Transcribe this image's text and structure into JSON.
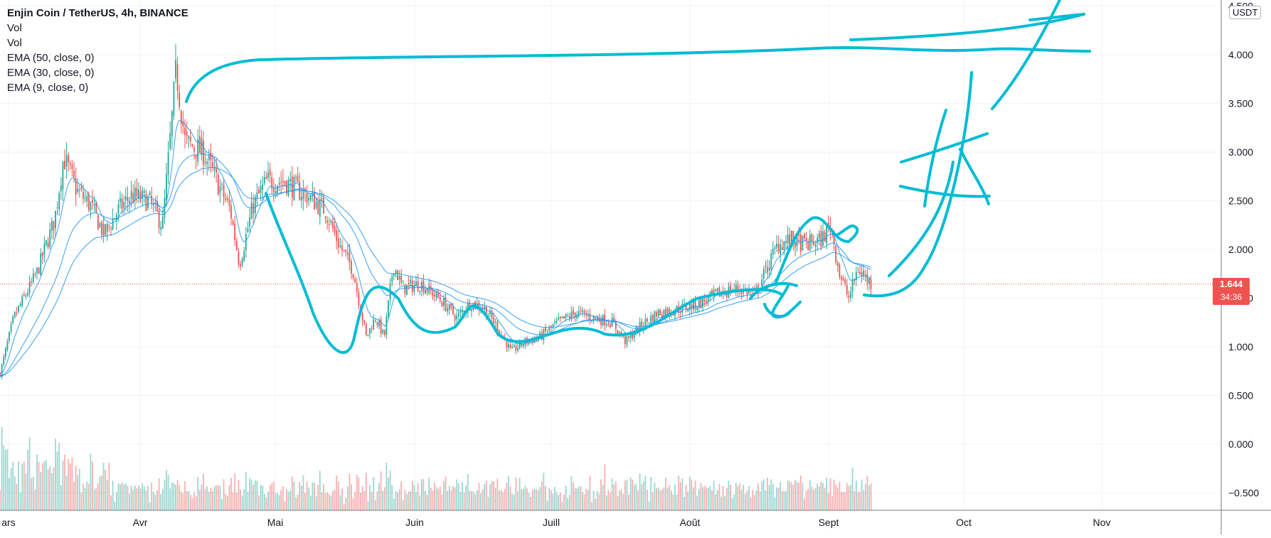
{
  "legend": {
    "title": "Enjin Coin / TetherUS, 4h, BINANCE",
    "vol1": "Vol",
    "vol2": "Vol",
    "ema50": "EMA (50, close, 0)",
    "ema30": "EMA (30, close, 0)",
    "ema9": "EMA (9, close, 0)"
  },
  "axis": {
    "unit": "USDT",
    "current_price": "1.644",
    "countdown": "34:36"
  },
  "colors": {
    "up": "#26a69a",
    "down": "#ef5350",
    "ema": "#2196f3",
    "drawing": "#00bcd4",
    "grid": "#f0f3fa",
    "text": "#131722"
  },
  "chart_data": {
    "type": "candlestick",
    "title": "Enjin Coin / TetherUS, 4h, BINANCE",
    "ylabel": "USDT",
    "ylim": [
      -0.6,
      4.5
    ],
    "yticks": [
      4.5,
      4.0,
      3.5,
      3.0,
      2.5,
      2.0,
      1.5,
      1.0,
      0.5,
      0.0,
      -0.5
    ],
    "ytick_labels": [
      "4.500",
      "4.000",
      "3.500",
      "3.000",
      "2.500",
      "2.000",
      "1.500",
      "1.000",
      "0.500",
      "0.000",
      "−0.500"
    ],
    "xtick_labels": [
      "ars",
      "Avr",
      "Mai",
      "Juin",
      "Juill",
      "Août",
      "Sept",
      "Oct",
      "Nov"
    ],
    "current_price": 1.644,
    "grid": true,
    "price_path": [
      {
        "t": "Mars 1",
        "p": 0.55
      },
      {
        "t": "Mars 5",
        "p": 1.3
      },
      {
        "t": "Mars 10",
        "p": 1.75
      },
      {
        "t": "Mars 14",
        "p": 2.3
      },
      {
        "t": "Mars 16",
        "p": 2.95
      },
      {
        "t": "Mars 19",
        "p": 2.6
      },
      {
        "t": "Mars 22",
        "p": 2.45
      },
      {
        "t": "Mars 25",
        "p": 2.15
      },
      {
        "t": "Mars 28",
        "p": 2.4
      },
      {
        "t": "Avr 1",
        "p": 2.55
      },
      {
        "t": "Avr 5",
        "p": 2.5
      },
      {
        "t": "Avr 8",
        "p": 2.25
      },
      {
        "t": "Avr 10",
        "p": 3.3
      },
      {
        "t": "Avr 11",
        "p": 3.85
      },
      {
        "t": "Avr 13",
        "p": 3.1
      },
      {
        "t": "Avr 17",
        "p": 3.0
      },
      {
        "t": "Avr 20",
        "p": 2.7
      },
      {
        "t": "Avr 23",
        "p": 2.4
      },
      {
        "t": "Avr 25",
        "p": 1.85
      },
      {
        "t": "Avr 28",
        "p": 2.45
      },
      {
        "t": "Mai 1",
        "p": 2.7
      },
      {
        "t": "Mai 5",
        "p": 2.7
      },
      {
        "t": "Mai 10",
        "p": 2.55
      },
      {
        "t": "Mai 14",
        "p": 2.4
      },
      {
        "t": "Mai 17",
        "p": 2.05
      },
      {
        "t": "Mai 20",
        "p": 1.8
      },
      {
        "t": "Mai 23",
        "p": 1.1
      },
      {
        "t": "Mai 25",
        "p": 1.3
      },
      {
        "t": "Mai 27",
        "p": 1.1
      },
      {
        "t": "Mai 29",
        "p": 1.85
      },
      {
        "t": "Juin 1",
        "p": 1.6
      },
      {
        "t": "Juin 5",
        "p": 1.65
      },
      {
        "t": "Juin 9",
        "p": 1.5
      },
      {
        "t": "Juin 13",
        "p": 1.3
      },
      {
        "t": "Juin 16",
        "p": 1.45
      },
      {
        "t": "Juin 19",
        "p": 1.4
      },
      {
        "t": "Juin 22",
        "p": 1.2
      },
      {
        "t": "Juin 25",
        "p": 0.95
      },
      {
        "t": "Juin 28",
        "p": 1.05
      },
      {
        "t": "Juill 1",
        "p": 1.1
      },
      {
        "t": "Juill 5",
        "p": 1.25
      },
      {
        "t": "Juill 9",
        "p": 1.35
      },
      {
        "t": "Juill 13",
        "p": 1.3
      },
      {
        "t": "Juill 17",
        "p": 1.25
      },
      {
        "t": "Juill 20",
        "p": 1.05
      },
      {
        "t": "Juill 23",
        "p": 1.2
      },
      {
        "t": "Juill 27",
        "p": 1.35
      },
      {
        "t": "Août 1",
        "p": 1.4
      },
      {
        "t": "Août 5",
        "p": 1.45
      },
      {
        "t": "Août 9",
        "p": 1.55
      },
      {
        "t": "Août 13",
        "p": 1.6
      },
      {
        "t": "Août 17",
        "p": 1.55
      },
      {
        "t": "Août 19",
        "p": 1.75
      },
      {
        "t": "Août 22",
        "p": 2.05
      },
      {
        "t": "Août 25",
        "p": 2.1
      },
      {
        "t": "Août 28",
        "p": 2.05
      },
      {
        "t": "Sept 1",
        "p": 2.1
      },
      {
        "t": "Sept 3",
        "p": 2.25
      },
      {
        "t": "Sept 5",
        "p": 1.75
      },
      {
        "t": "Sept 7",
        "p": 1.5
      },
      {
        "t": "Sept 9",
        "p": 1.8
      },
      {
        "t": "Sept 12",
        "p": 1.644
      }
    ]
  }
}
